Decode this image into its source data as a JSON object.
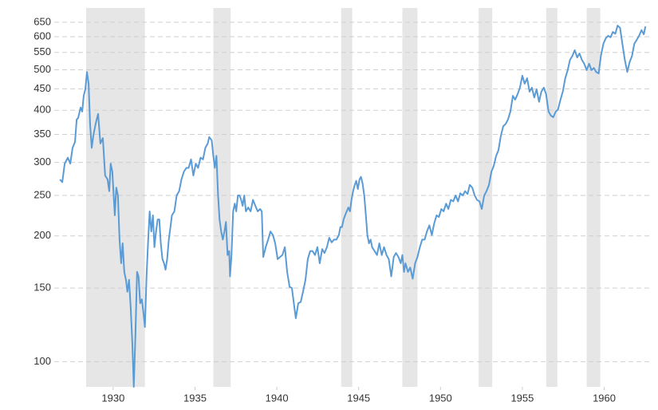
{
  "chart_data": {
    "type": "line",
    "log_y": true,
    "grid": true,
    "color": "#5b9bd5",
    "shade_color": "#e6e6e6",
    "xlim": [
      1926.4,
      1962.8
    ],
    "ylim": [
      87,
      703
    ],
    "xticks": [
      1930,
      1935,
      1940,
      1945,
      1950,
      1955,
      1960
    ],
    "yticks": [
      100,
      150,
      200,
      250,
      300,
      350,
      400,
      450,
      500,
      550,
      600,
      650
    ],
    "shaded_ranges": [
      [
        1928.35,
        1931.94
      ],
      [
        1936.12,
        1937.18
      ],
      [
        1943.93,
        1944.61
      ],
      [
        1947.67,
        1948.59
      ],
      [
        1952.33,
        1953.16
      ],
      [
        1956.46,
        1957.14
      ],
      [
        1958.93,
        1959.76
      ]
    ],
    "x": [
      1926.75,
      1926.89,
      1927.04,
      1927.23,
      1927.38,
      1927.52,
      1927.67,
      1927.77,
      1927.86,
      1928.01,
      1928.11,
      1928.2,
      1928.3,
      1928.4,
      1928.5,
      1928.59,
      1928.69,
      1928.79,
      1928.93,
      1929.08,
      1929.22,
      1929.37,
      1929.51,
      1929.66,
      1929.76,
      1929.85,
      1929.95,
      1930.1,
      1930.19,
      1930.29,
      1930.39,
      1930.49,
      1930.58,
      1930.68,
      1930.78,
      1930.87,
      1930.97,
      1931.07,
      1931.17,
      1931.26,
      1931.36,
      1931.46,
      1931.55,
      1931.65,
      1931.75,
      1931.84,
      1931.94,
      1932.04,
      1932.14,
      1932.23,
      1932.33,
      1932.43,
      1932.52,
      1932.62,
      1932.72,
      1932.82,
      1932.91,
      1933.01,
      1933.11,
      1933.2,
      1933.3,
      1933.4,
      1933.5,
      1933.59,
      1933.74,
      1933.88,
      1934.03,
      1934.17,
      1934.32,
      1934.47,
      1934.61,
      1934.76,
      1934.9,
      1935.05,
      1935.19,
      1935.34,
      1935.49,
      1935.63,
      1935.78,
      1935.87,
      1936.02,
      1936.12,
      1936.21,
      1936.31,
      1936.41,
      1936.5,
      1936.6,
      1936.7,
      1936.8,
      1936.89,
      1936.99,
      1937.09,
      1937.14,
      1937.23,
      1937.33,
      1937.43,
      1937.52,
      1937.62,
      1937.72,
      1937.82,
      1937.91,
      1938.01,
      1938.11,
      1938.25,
      1938.4,
      1938.54,
      1938.69,
      1938.83,
      1938.98,
      1939.08,
      1939.17,
      1939.32,
      1939.47,
      1939.61,
      1939.76,
      1939.9,
      1940.05,
      1940.19,
      1940.34,
      1940.49,
      1940.63,
      1940.78,
      1940.92,
      1941.07,
      1941.16,
      1941.31,
      1941.46,
      1941.6,
      1941.75,
      1941.89,
      1942.04,
      1942.18,
      1942.33,
      1942.48,
      1942.62,
      1942.77,
      1942.91,
      1943.06,
      1943.2,
      1943.35,
      1943.49,
      1943.64,
      1943.79,
      1943.88,
      1943.98,
      1944.08,
      1944.17,
      1944.27,
      1944.37,
      1944.47,
      1944.56,
      1944.66,
      1944.76,
      1944.85,
      1944.95,
      1945.05,
      1945.14,
      1945.24,
      1945.34,
      1945.44,
      1945.53,
      1945.63,
      1945.73,
      1945.82,
      1945.97,
      1946.12,
      1946.26,
      1946.41,
      1946.55,
      1946.7,
      1946.84,
      1946.99,
      1947.14,
      1947.28,
      1947.43,
      1947.57,
      1947.67,
      1947.77,
      1947.86,
      1948.01,
      1948.15,
      1948.3,
      1948.45,
      1948.59,
      1948.74,
      1948.88,
      1949.03,
      1949.17,
      1949.32,
      1949.47,
      1949.61,
      1949.76,
      1949.9,
      1950.05,
      1950.19,
      1950.34,
      1950.48,
      1950.63,
      1950.78,
      1950.92,
      1951.07,
      1951.21,
      1951.36,
      1951.5,
      1951.65,
      1951.79,
      1951.94,
      1952.09,
      1952.23,
      1952.38,
      1952.52,
      1952.67,
      1952.81,
      1952.96,
      1953.11,
      1953.25,
      1953.4,
      1953.54,
      1953.69,
      1953.83,
      1953.98,
      1954.12,
      1954.27,
      1954.42,
      1954.56,
      1954.71,
      1954.85,
      1955.0,
      1955.14,
      1955.29,
      1955.44,
      1955.58,
      1955.73,
      1955.87,
      1956.02,
      1956.16,
      1956.31,
      1956.45,
      1956.6,
      1956.75,
      1956.89,
      1957.04,
      1957.18,
      1957.33,
      1957.47,
      1957.62,
      1957.77,
      1957.91,
      1958.06,
      1958.2,
      1958.35,
      1958.49,
      1958.64,
      1958.78,
      1958.93,
      1959.08,
      1959.22,
      1959.37,
      1959.51,
      1959.66,
      1959.8,
      1959.95,
      1960.1,
      1960.24,
      1960.39,
      1960.53,
      1960.68,
      1960.82,
      1960.97,
      1961.11,
      1961.26,
      1961.41,
      1961.55,
      1961.7,
      1961.84,
      1961.99,
      1962.13,
      1962.28,
      1962.42,
      1962.52
    ],
    "values": [
      273,
      269,
      298,
      308,
      298,
      325,
      336,
      380,
      383,
      406,
      397,
      433,
      449,
      494,
      463,
      371,
      325,
      348,
      371,
      392,
      333,
      343,
      279,
      273,
      256,
      298,
      285,
      224,
      261,
      250,
      196,
      172,
      192,
      164,
      157,
      147,
      157,
      135,
      111,
      87,
      116,
      164,
      160,
      138,
      141,
      132,
      121,
      160,
      196,
      229,
      205,
      224,
      188,
      205,
      219,
      219,
      192,
      176,
      172,
      166,
      176,
      196,
      210,
      224,
      229,
      250,
      256,
      273,
      285,
      291,
      291,
      305,
      279,
      298,
      291,
      308,
      305,
      325,
      333,
      345,
      339,
      311,
      291,
      311,
      250,
      219,
      205,
      196,
      205,
      216,
      180,
      184,
      160,
      180,
      229,
      239,
      229,
      250,
      250,
      244,
      236,
      250,
      229,
      234,
      229,
      244,
      236,
      229,
      232,
      229,
      178,
      188,
      196,
      205,
      201,
      192,
      176,
      178,
      180,
      188,
      164,
      151,
      150,
      135,
      127,
      138,
      139,
      147,
      157,
      176,
      184,
      184,
      180,
      188,
      172,
      186,
      182,
      188,
      198,
      193,
      196,
      196,
      201,
      210,
      210,
      219,
      224,
      229,
      234,
      229,
      244,
      256,
      265,
      271,
      259,
      273,
      277,
      267,
      250,
      224,
      201,
      192,
      196,
      188,
      184,
      180,
      192,
      180,
      188,
      180,
      176,
      160,
      178,
      182,
      178,
      172,
      180,
      164,
      172,
      164,
      168,
      158,
      172,
      178,
      188,
      196,
      196,
      205,
      212,
      201,
      214,
      224,
      222,
      232,
      229,
      239,
      232,
      244,
      242,
      250,
      242,
      253,
      250,
      256,
      252,
      265,
      261,
      250,
      244,
      242,
      232,
      250,
      256,
      265,
      285,
      294,
      311,
      321,
      348,
      366,
      371,
      380,
      397,
      433,
      424,
      437,
      453,
      484,
      463,
      477,
      443,
      453,
      429,
      449,
      419,
      443,
      453,
      437,
      397,
      388,
      385,
      397,
      402,
      424,
      443,
      477,
      499,
      528,
      540,
      557,
      535,
      547,
      528,
      517,
      499,
      517,
      499,
      505,
      494,
      490,
      540,
      577,
      595,
      603,
      598,
      616,
      610,
      638,
      630,
      577,
      528,
      494,
      521,
      540,
      577,
      590,
      603,
      622,
      608,
      635
    ]
  }
}
